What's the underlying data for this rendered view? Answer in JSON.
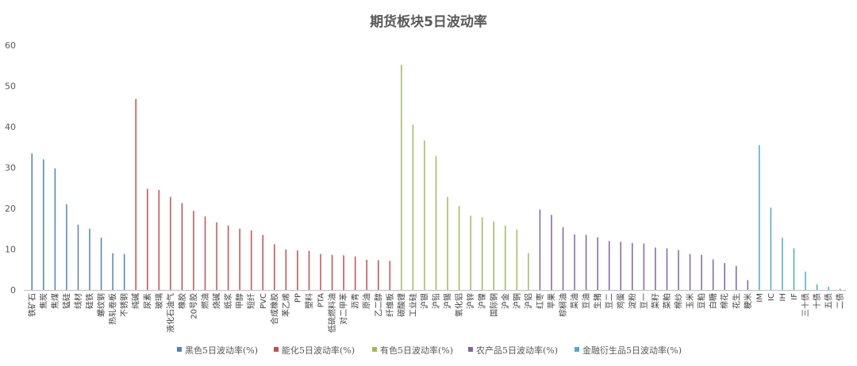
{
  "chart_data": {
    "type": "bar",
    "title": "期货板块5日波动率",
    "xlabel": "",
    "ylabel": "",
    "ylim": [
      0,
      60
    ],
    "yticks": [
      0,
      10,
      20,
      30,
      40,
      50,
      60
    ],
    "grid": false,
    "legend_position": "bottom",
    "series": [
      {
        "name": "黑色5日波动率(%)",
        "color": "#4F81BD",
        "categories": [
          "铁矿石",
          "焦炭",
          "焦煤",
          "锰硅",
          "线材",
          "硅铁",
          "螺纹钢",
          "热轧卷板",
          "不锈钢"
        ],
        "values": [
          33.5,
          32.0,
          29.8,
          21.0,
          16.0,
          15.0,
          12.8,
          9.0,
          8.8
        ]
      },
      {
        "name": "能化5日波动率(%)",
        "color": "#C0504D",
        "categories": [
          "纯碱",
          "尿素",
          "玻璃",
          "液化石油气",
          "橡胶",
          "20号胶",
          "燃油",
          "烧碱",
          "纸浆",
          "甲醇",
          "短纤",
          "PVC",
          "合成橡胶",
          "苯乙烯",
          "PP",
          "塑料",
          "PTA",
          "低硫燃料油",
          "对二甲苯",
          "沥青",
          "原油",
          "乙二醇",
          "纤维板"
        ],
        "values": [
          46.8,
          24.8,
          24.5,
          22.8,
          21.3,
          19.4,
          18.0,
          16.6,
          15.8,
          15.0,
          14.6,
          13.5,
          11.2,
          9.9,
          9.7,
          9.6,
          8.8,
          8.6,
          8.5,
          8.2,
          7.4,
          7.3,
          7.1
        ]
      },
      {
        "name": "有色5日波动率(%)",
        "color": "#9BBB59",
        "categories": [
          "碳酸锂",
          "工业硅",
          "沪银",
          "沪铅",
          "沪锡",
          "氧化铝",
          "沪锌",
          "沪镍",
          "国际铜",
          "沪金",
          "沪铜",
          "沪铝"
        ],
        "values": [
          55.2,
          40.5,
          36.6,
          32.8,
          22.8,
          20.6,
          18.2,
          17.8,
          16.8,
          15.8,
          14.8,
          9.0
        ]
      },
      {
        "name": "农产品5日波动率(%)",
        "color": "#8064A2",
        "categories": [
          "红枣",
          "苹果",
          "棕榈油",
          "菜油",
          "豆油",
          "生猪",
          "豆二",
          "鸡蛋",
          "淀粉",
          "豆一",
          "菜籽",
          "菜粕",
          "棉纱",
          "玉米",
          "豆粕",
          "白糖",
          "棉花",
          "花生",
          "粳米"
        ],
        "values": [
          19.7,
          18.4,
          15.4,
          13.6,
          13.5,
          12.9,
          12.0,
          11.8,
          11.5,
          11.4,
          10.4,
          10.2,
          9.8,
          8.8,
          8.6,
          7.5,
          6.6,
          5.9,
          2.4
        ]
      },
      {
        "name": "金融衍生品5日波动率(%)",
        "color": "#4BACC6",
        "categories": [
          "IM",
          "IC",
          "IH",
          "IF",
          "三十债",
          "十债",
          "五债",
          "二债"
        ],
        "values": [
          35.5,
          20.2,
          12.8,
          10.2,
          4.5,
          1.4,
          0.8,
          0.3
        ]
      }
    ]
  }
}
